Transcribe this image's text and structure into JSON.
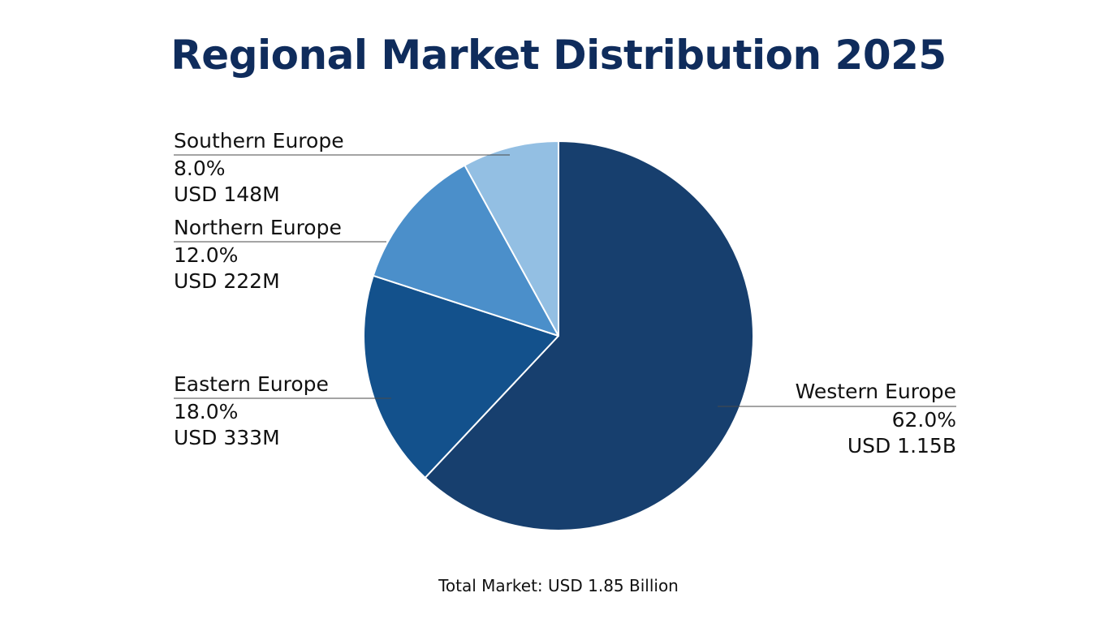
{
  "chart_data": {
    "type": "pie",
    "title": "Regional Market Distribution 2025",
    "categories": [
      "Western Europe",
      "Eastern Europe",
      "Northern Europe",
      "Southern Europe"
    ],
    "values": [
      62.0,
      18.0,
      12.0,
      8.0
    ],
    "percent_labels": [
      "62.0%",
      "18.0%",
      "12.0%",
      "8.0%"
    ],
    "amount_labels": [
      "USD 1.15B",
      "USD 333M",
      "USD 222M",
      "USD 148M"
    ],
    "colors": [
      "#173f6e",
      "#13518c",
      "#4b8fca",
      "#93bfe3"
    ],
    "legend": "none",
    "grid": false
  },
  "footer": {
    "total_text": "Total Market: USD 1.85 Billion"
  }
}
